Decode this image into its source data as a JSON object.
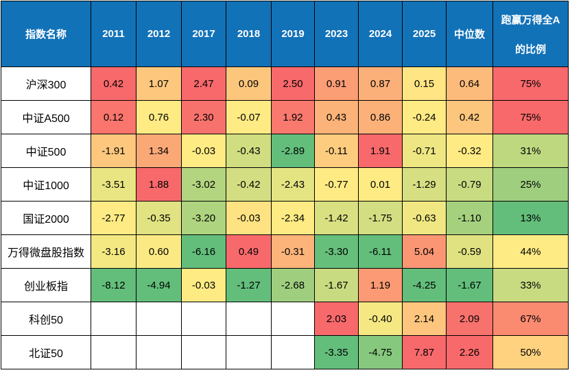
{
  "colors": {
    "header_bg": "#1272b8",
    "header_text": "#ffffff",
    "border": "#000000",
    "cell_text": "#000000",
    "blank_cell_bg": "#ffffff",
    "scale_max_red": "#f8696b",
    "scale_mid_yellow": "#ffeb84",
    "scale_min_green": "#63be7b"
  },
  "chart_data": {
    "type": "table",
    "title": "",
    "header": {
      "index_label": "指数名称",
      "years": [
        "2011",
        "2012",
        "2017",
        "2018",
        "2019",
        "2023",
        "2024",
        "2025"
      ],
      "median_label": "中位数",
      "ratio_label_lines": [
        "跑赢万得全A",
        "的比例"
      ]
    },
    "color_scale_note": "per-column 3-color scale: min=green, median=yellow, max=red",
    "rows": [
      {
        "name": "沪深300",
        "values": [
          0.42,
          1.07,
          2.47,
          0.09,
          2.5,
          0.91,
          0.87,
          0.15
        ],
        "median": 0.64,
        "beat_ratio_pct": 75
      },
      {
        "name": "中证A500",
        "values": [
          0.12,
          0.76,
          2.3,
          -0.07,
          1.92,
          0.43,
          0.86,
          -0.24
        ],
        "median": 0.42,
        "beat_ratio_pct": 75
      },
      {
        "name": "中证500",
        "values": [
          -1.91,
          1.34,
          -0.03,
          -0.43,
          -2.89,
          -0.11,
          1.91,
          -0.71
        ],
        "median": -0.32,
        "beat_ratio_pct": 31
      },
      {
        "name": "中证1000",
        "values": [
          -3.51,
          1.88,
          -3.02,
          -0.42,
          -2.43,
          -0.77,
          0.01,
          -1.29
        ],
        "median": -0.79,
        "beat_ratio_pct": 25
      },
      {
        "name": "国证2000",
        "values": [
          -2.77,
          -0.35,
          -3.2,
          -0.03,
          -2.34,
          -1.42,
          -1.75,
          -0.63
        ],
        "median": -1.1,
        "beat_ratio_pct": 13
      },
      {
        "name": "万得微盘股指数",
        "values": [
          -3.16,
          0.6,
          -6.16,
          0.49,
          -0.31,
          -3.3,
          -6.11,
          5.04
        ],
        "median": -0.59,
        "beat_ratio_pct": 44
      },
      {
        "name": "创业板指",
        "values": [
          -8.12,
          -4.94,
          -0.03,
          -1.27,
          -2.68,
          -1.67,
          1.19,
          -4.25
        ],
        "median": -1.67,
        "beat_ratio_pct": 33
      },
      {
        "name": "科创50",
        "values": [
          null,
          null,
          null,
          null,
          null,
          2.03,
          -0.4,
          2.14
        ],
        "median": 2.09,
        "beat_ratio_pct": 67
      },
      {
        "name": "北证50",
        "values": [
          null,
          null,
          null,
          null,
          null,
          -3.35,
          -4.75,
          7.87
        ],
        "median": 2.26,
        "beat_ratio_pct": 50
      }
    ]
  }
}
